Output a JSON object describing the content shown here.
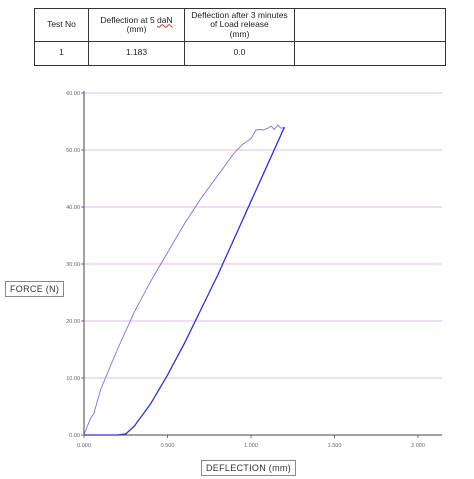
{
  "table": {
    "headers": {
      "test_no": "Test No",
      "deflection_line1": "Deflection at 5 ",
      "deflection_dan": "daN",
      "deflection_unit": "(mm)",
      "after_release": "Deflection after 3 minutes of Load release",
      "after_release_unit": "(mm)",
      "extra": ""
    },
    "row": {
      "test_no": "1",
      "deflection": "1.183",
      "after_release": "0.0",
      "extra": ""
    }
  },
  "chart_data": {
    "type": "line",
    "title": "",
    "xlabel": "DEFLECTION (mm)",
    "ylabel": "FORCE (N)",
    "xlim": [
      0,
      2.0
    ],
    "ylim": [
      0,
      60
    ],
    "x_ticks": [
      "0.000",
      "0.500",
      "1.000",
      "1.500",
      "2.000"
    ],
    "y_ticks": [
      "0.00",
      "10.00",
      "20.00",
      "30.00",
      "40.00",
      "50.00",
      "60.00"
    ],
    "grid": "horizontal",
    "grid_color": "#d8a8e0",
    "series": [
      {
        "color": "#7a72e6",
        "x": [
          0.0,
          0.02,
          0.04,
          0.06,
          0.08,
          0.1,
          0.15,
          0.2,
          0.3,
          0.4,
          0.5,
          0.6,
          0.7,
          0.8,
          0.9,
          0.95,
          1.0,
          1.03,
          1.05,
          1.07,
          1.1,
          1.12,
          1.14,
          1.16,
          1.18,
          1.2
        ],
        "y": [
          0.0,
          1.5,
          3.0,
          3.8,
          6.0,
          8.0,
          11.5,
          15.0,
          21.5,
          27.0,
          32.0,
          37.0,
          41.5,
          45.5,
          49.5,
          51.0,
          52.0,
          53.5,
          53.6,
          53.5,
          53.8,
          54.2,
          53.6,
          54.4,
          53.8,
          54.0
        ]
      },
      {
        "color": "#2f35c8",
        "x": [
          1.2,
          1.1,
          1.0,
          0.9,
          0.8,
          0.7,
          0.6,
          0.5,
          0.4,
          0.3,
          0.25,
          0.2,
          0.17,
          0.15,
          0.13,
          0.1,
          0.05,
          0.0
        ],
        "y": [
          54.0,
          47.5,
          41.0,
          34.5,
          28.0,
          22.0,
          16.0,
          10.5,
          5.5,
          1.5,
          0.2,
          0.0,
          0.0,
          0.0,
          0.0,
          0.0,
          0.0,
          0.0
        ]
      }
    ]
  }
}
